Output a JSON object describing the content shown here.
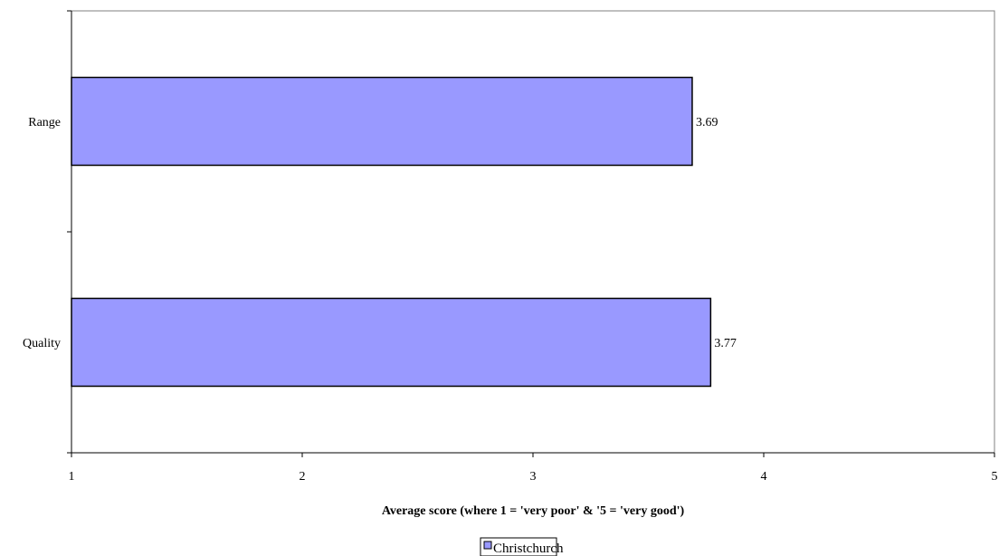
{
  "chart_data": {
    "type": "bar",
    "orientation": "horizontal",
    "categories": [
      "Range",
      "Quality"
    ],
    "series": [
      {
        "name": "Christchurch",
        "values": [
          3.69,
          3.77
        ],
        "color": "#9999ff"
      }
    ],
    "data_labels": [
      "3.69",
      "3.77"
    ],
    "xlabel": "Average score (where 1 = 'very poor' & '5 = 'very good')",
    "ylabel": "",
    "title": "",
    "xlim": [
      1,
      5
    ],
    "x_ticks": [
      "1",
      "2",
      "3",
      "4",
      "5"
    ],
    "grid": false,
    "legend_position": "bottom"
  }
}
